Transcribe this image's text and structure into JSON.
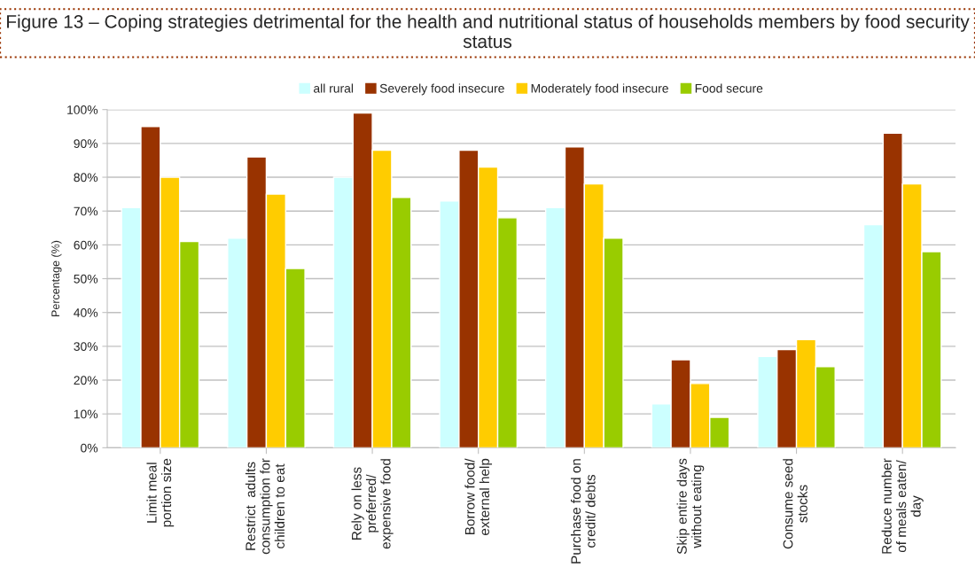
{
  "chart_data": {
    "type": "bar",
    "title": "Figure 13 – Coping strategies detrimental for the health and nutritional status of households members by food security status",
    "ylabel": "Percentage (%)",
    "categories": [
      "Limit meal\nportion size",
      "Restrict  adults\nconsumption for\nchildren to eat",
      "Rely on less\npreferred/\nexpensive food",
      "Borrow food/\nexternal help",
      "Purchase food on\ncredit/ debts",
      "Skip entire days\nwithout eating",
      "Consume seed\nstocks",
      "Reduce number\nof meals eaten/\nday"
    ],
    "series": [
      {
        "name": "all rural",
        "color": "#ccffff",
        "values": [
          71,
          62,
          80,
          73,
          71,
          13,
          27,
          66
        ]
      },
      {
        "name": "Severely food insecure",
        "color": "#993300",
        "values": [
          95,
          86,
          99,
          88,
          89,
          26,
          29,
          93
        ]
      },
      {
        "name": "Moderately food insecure",
        "color": "#ffcc00",
        "values": [
          80,
          75,
          88,
          83,
          78,
          19,
          32,
          78
        ]
      },
      {
        "name": "Food secure",
        "color": "#99cc00",
        "values": [
          61,
          53,
          74,
          68,
          62,
          9,
          24,
          58
        ]
      }
    ],
    "ylim": [
      0,
      100
    ],
    "yticks": [
      {
        "value": 0,
        "label": "0%"
      },
      {
        "value": 10,
        "label": "10%"
      },
      {
        "value": 20,
        "label": "20%"
      },
      {
        "value": 30,
        "label": "30%"
      },
      {
        "value": 40,
        "label": "40%"
      },
      {
        "value": 50,
        "label": "50%"
      },
      {
        "value": 60,
        "label": "60%"
      },
      {
        "value": 70,
        "label": "70%"
      },
      {
        "value": 80,
        "label": "80%"
      },
      {
        "value": 90,
        "label": "90%"
      },
      {
        "value": 100,
        "label": "100%"
      }
    ],
    "grid": "y",
    "legend": "top"
  }
}
